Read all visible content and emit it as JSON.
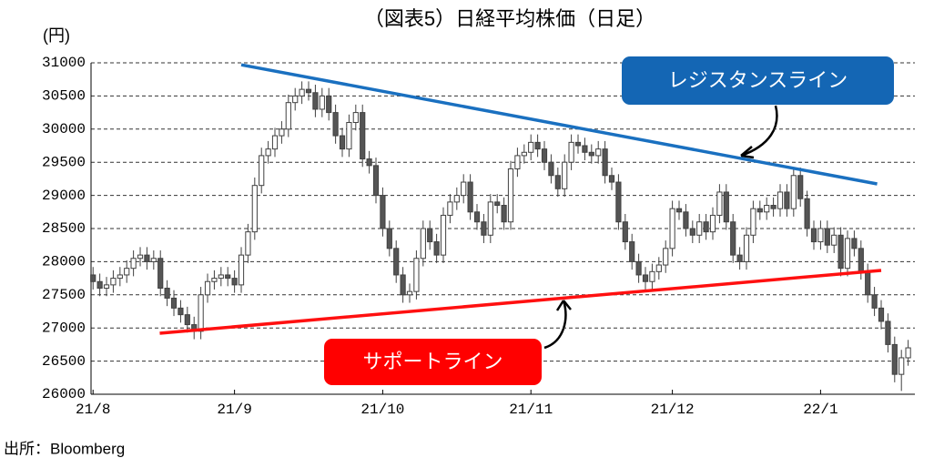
{
  "chart_data": {
    "type": "candlestick",
    "title": "（図表5）日経平均株価（日足）",
    "y_unit": "(円)",
    "source": "出所：Bloomberg",
    "up_color": "#ffffff",
    "down_color": "#555555",
    "edge_color": "#404040",
    "grid": true,
    "ylim": [
      26000,
      31000
    ],
    "yticks": [
      26000,
      26500,
      27000,
      27500,
      28000,
      28500,
      29000,
      29500,
      30000,
      30500,
      31000
    ],
    "xlim": [
      -0.3,
      122
    ],
    "xticks": [
      {
        "value": 0,
        "label": "21/8"
      },
      {
        "value": 21,
        "label": "21/9"
      },
      {
        "value": 43,
        "label": "21/10"
      },
      {
        "value": 65,
        "label": "21/11"
      },
      {
        "value": 86,
        "label": "21/12"
      },
      {
        "value": 108,
        "label": "22/1"
      }
    ],
    "open": [
      27800,
      27700,
      27600,
      27650,
      27750,
      27800,
      27900,
      28050,
      28100,
      28000,
      28050,
      27600,
      27450,
      27300,
      27200,
      27050,
      26950,
      27500,
      27700,
      27750,
      27800,
      27750,
      27650,
      28100,
      28450,
      29150,
      29600,
      29700,
      29900,
      30000,
      30400,
      30500,
      30600,
      30550,
      30300,
      30500,
      30250,
      29900,
      29700,
      30100,
      30250,
      29550,
      29450,
      29000,
      28500,
      28200,
      27800,
      27500,
      27550,
      28050,
      28500,
      28300,
      28100,
      28700,
      28900,
      29000,
      29200,
      28750,
      28600,
      28400,
      28900,
      28850,
      28600,
      29400,
      29600,
      29650,
      29800,
      29700,
      29500,
      29300,
      29100,
      29500,
      29800,
      29750,
      29650,
      29600,
      29700,
      29300,
      29200,
      28600,
      28300,
      28000,
      27800,
      27700,
      27850,
      27950,
      28200,
      28800,
      28750,
      28500,
      28400,
      28600,
      28450,
      28700,
      29050,
      28600,
      28100,
      28000,
      28400,
      28800,
      28750,
      28850,
      28800,
      29050,
      28800,
      29300,
      28950,
      28500,
      28300,
      28500,
      28250,
      28400,
      27900,
      28350,
      28200,
      27850,
      27500,
      27300,
      27100,
      26750,
      26300,
      26550
    ],
    "high": [
      27920,
      27820,
      27770,
      27870,
      27920,
      28020,
      28170,
      28220,
      28220,
      28170,
      28170,
      27720,
      27570,
      27420,
      27320,
      27170,
      27620,
      27820,
      27870,
      27920,
      27920,
      27870,
      28220,
      28570,
      29270,
      29720,
      29820,
      30020,
      30120,
      30520,
      30620,
      30720,
      30720,
      30670,
      30620,
      30620,
      30370,
      30020,
      30220,
      30370,
      30370,
      29670,
      29570,
      29120,
      28620,
      28320,
      27920,
      27670,
      28170,
      28620,
      28620,
      28420,
      28820,
      29020,
      29120,
      29320,
      29320,
      28870,
      28720,
      29020,
      29020,
      28970,
      29520,
      29720,
      29770,
      29920,
      29920,
      29820,
      29620,
      29420,
      29620,
      29920,
      29920,
      29870,
      29770,
      29820,
      29820,
      29420,
      29320,
      28720,
      28420,
      28120,
      27920,
      27970,
      28070,
      28320,
      28920,
      28920,
      28870,
      28620,
      28720,
      28720,
      28820,
      29170,
      29170,
      28720,
      28220,
      28520,
      28920,
      28920,
      28970,
      28970,
      29170,
      29170,
      29420,
      29420,
      29070,
      28620,
      28620,
      28620,
      28520,
      28520,
      28470,
      28470,
      28320,
      27970,
      27620,
      27420,
      27220,
      26870,
      26670,
      26820
    ],
    "low": [
      27580,
      27480,
      27480,
      27530,
      27630,
      27680,
      27780,
      27930,
      27880,
      27880,
      27480,
      27330,
      27180,
      27080,
      26930,
      26830,
      26830,
      27380,
      27580,
      27630,
      27630,
      27530,
      27530,
      27980,
      28330,
      29030,
      29480,
      29580,
      29780,
      29880,
      30280,
      30380,
      30430,
      30180,
      30180,
      30130,
      29780,
      29580,
      29580,
      29980,
      29430,
      29330,
      28880,
      28380,
      28080,
      27680,
      27380,
      27380,
      27430,
      27930,
      28180,
      27980,
      27980,
      28580,
      28780,
      28880,
      28630,
      28480,
      28280,
      28280,
      28730,
      28480,
      28480,
      29280,
      29480,
      29530,
      29580,
      29380,
      29180,
      28980,
      28980,
      29380,
      29630,
      29530,
      29480,
      29480,
      29180,
      29080,
      28480,
      28180,
      27880,
      27680,
      27580,
      27580,
      27730,
      27830,
      28080,
      28630,
      28380,
      28280,
      28280,
      28330,
      28330,
      28580,
      28480,
      27980,
      27880,
      27880,
      28280,
      28630,
      28630,
      28680,
      28680,
      28680,
      28680,
      28830,
      28380,
      28180,
      28180,
      28130,
      28130,
      27780,
      27780,
      28080,
      27730,
      27380,
      27180,
      26980,
      26630,
      26180,
      26050,
      26430
    ],
    "close": [
      27700,
      27600,
      27650,
      27750,
      27800,
      27900,
      28050,
      28100,
      28000,
      28050,
      27600,
      27450,
      27300,
      27200,
      27050,
      26950,
      27500,
      27700,
      27750,
      27800,
      27750,
      27650,
      28100,
      28450,
      29150,
      29600,
      29700,
      29900,
      30000,
      30400,
      30500,
      30600,
      30550,
      30300,
      30500,
      30250,
      29900,
      29700,
      30100,
      30250,
      29550,
      29450,
      29000,
      28500,
      28200,
      27800,
      27500,
      27550,
      28050,
      28500,
      28300,
      28100,
      28700,
      28900,
      29000,
      29200,
      28750,
      28600,
      28400,
      28900,
      28850,
      28600,
      29400,
      29600,
      29650,
      29800,
      29700,
      29500,
      29300,
      29100,
      29500,
      29800,
      29750,
      29650,
      29600,
      29700,
      29300,
      29200,
      28600,
      28300,
      28000,
      27800,
      27700,
      27850,
      27950,
      28200,
      28800,
      28750,
      28500,
      28400,
      28600,
      28450,
      28700,
      29050,
      28600,
      28100,
      28000,
      28400,
      28800,
      28750,
      28850,
      28800,
      29050,
      28800,
      29300,
      28950,
      28500,
      28300,
      28500,
      28250,
      28400,
      27900,
      28350,
      28200,
      27850,
      27500,
      27300,
      27100,
      26750,
      26300,
      26550,
      26700
    ],
    "trendlines": [
      {
        "name": "レジスタンスライン",
        "color": "#1a70c0",
        "box_color": "#1466b4",
        "x": [
          22,
          116.4
        ],
        "y": [
          30970,
          29173
        ]
      },
      {
        "name": "サポートライン",
        "color": "#ff1010",
        "box_color": "#ff0000",
        "x": [
          9.9,
          117
        ],
        "y": [
          26920,
          27868
        ]
      }
    ]
  }
}
